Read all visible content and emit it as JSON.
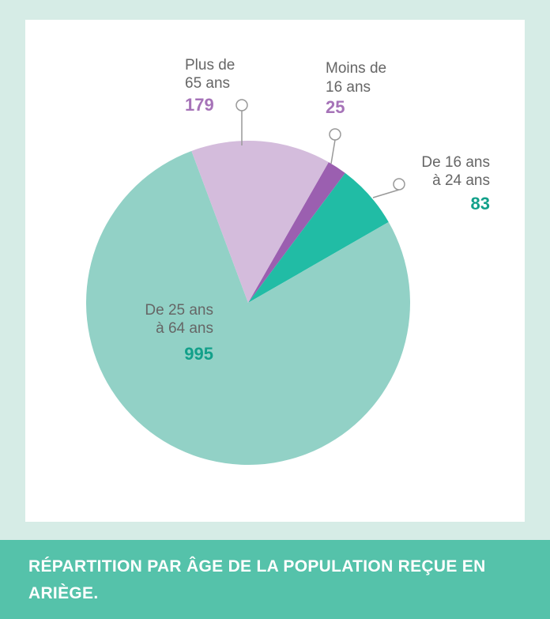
{
  "chart_data": {
    "type": "pie",
    "title": "RÉPARTITION PAR ÂGE DE LA POPULATION REÇUE EN ARIÈGE.",
    "categories": [
      [
        "Moins de",
        "16 ans"
      ],
      [
        "De 16 ans",
        "à 24 ans"
      ],
      [
        "De 25 ans",
        "à 64 ans"
      ],
      [
        "Plus de",
        "65 ans"
      ]
    ],
    "values": [
      25,
      83,
      995,
      179
    ],
    "colors": [
      "#9b5fb0",
      "#21bca5",
      "#92d1c6",
      "#d4bcdc"
    ],
    "label_colors": [
      "#a673b8",
      "#12a08a",
      "#12a08a",
      "#a673b8"
    ]
  }
}
